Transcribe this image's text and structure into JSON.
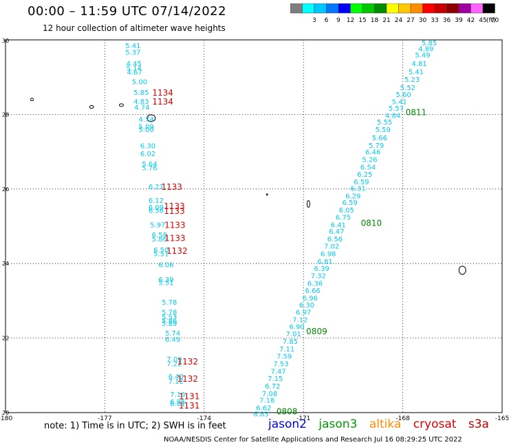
{
  "header": {
    "title": "00:00 – 11:59 UTC 07/14/2022",
    "subtitle": "12 hour collection of altimeter wave heights"
  },
  "legend": {
    "unit": "(ft)",
    "items": [
      {
        "label": "",
        "color": "#7f7f7f"
      },
      {
        "label": "3",
        "color": "#00ffff"
      },
      {
        "label": "6",
        "color": "#00c8ff"
      },
      {
        "label": "9",
        "color": "#0078ff"
      },
      {
        "label": "12",
        "color": "#0000ff"
      },
      {
        "label": "15",
        "color": "#00ff00"
      },
      {
        "label": "18",
        "color": "#00c800"
      },
      {
        "label": "21",
        "color": "#008c00"
      },
      {
        "label": "24",
        "color": "#ffff00"
      },
      {
        "label": "27",
        "color": "#ffc800"
      },
      {
        "label": "30",
        "color": "#ff8c00"
      },
      {
        "label": "33",
        "color": "#ff0000"
      },
      {
        "label": "36",
        "color": "#c80000"
      },
      {
        "label": "39",
        "color": "#8c0000"
      },
      {
        "label": "42",
        "color": "#a000a0"
      },
      {
        "label": "45",
        "color": "#ff64ff"
      },
      {
        "label": "70",
        "color": "#000000"
      }
    ]
  },
  "footer": {
    "note": "note: 1) Time is in UTC; 2) SWH is in feet",
    "missions": [
      {
        "label": "jason2",
        "color": "#0000dd"
      },
      {
        "label": "jason3",
        "color": "#009900"
      },
      {
        "label": "altika",
        "color": "#ff8c00"
      },
      {
        "label": "cryosat",
        "color": "#dd0000"
      },
      {
        "label": "s3a",
        "color": "#bb0000"
      }
    ],
    "credit": "NOAA/NESDIS Center for Satellite Applications and Research    Jul 16 08:29:25 UTC 2022"
  },
  "chart_data": {
    "type": "scatter",
    "xlim": [
      -180,
      -165
    ],
    "ylim": [
      20,
      30
    ],
    "x_ticks": [
      "-180",
      "-177",
      "-174",
      "-171",
      "-168",
      "-165"
    ],
    "y_ticks": [
      "20",
      "22",
      "24",
      "26",
      "28",
      "30"
    ],
    "grid": true,
    "colors": {
      "swh": "#00ccee",
      "jason3": "#008800",
      "cryosat": "#dd0000"
    },
    "series": [
      {
        "name": "jason2",
        "points": [
          {
            "x": -176.15,
            "y": 29.85,
            "v": "5.41"
          },
          {
            "x": -176.15,
            "y": 29.68,
            "v": "5.37"
          },
          {
            "x": -176.12,
            "y": 29.37,
            "v": "4.45"
          },
          {
            "x": -176.12,
            "y": 29.25,
            "v": "5.14"
          },
          {
            "x": -176.1,
            "y": 29.14,
            "v": "4.67"
          },
          {
            "x": -175.95,
            "y": 28.88,
            "v": "5.00"
          },
          {
            "x": -175.9,
            "y": 28.6,
            "v": "5.85"
          },
          {
            "x": -175.9,
            "y": 28.36,
            "v": "4.83"
          },
          {
            "x": -175.88,
            "y": 28.2,
            "v": "4.74"
          },
          {
            "x": -175.75,
            "y": 27.88,
            "v": "4.74"
          },
          {
            "x": -175.75,
            "y": 27.68,
            "v": "5.09"
          },
          {
            "x": -175.75,
            "y": 27.6,
            "v": "5.00"
          },
          {
            "x": -175.7,
            "y": 27.17,
            "v": "6.30"
          },
          {
            "x": -175.7,
            "y": 26.96,
            "v": "6.02"
          },
          {
            "x": -175.65,
            "y": 26.68,
            "v": "5.64"
          },
          {
            "x": -175.65,
            "y": 26.58,
            "v": "5.76"
          },
          {
            "x": -175.45,
            "y": 26.07,
            "v": "6.21"
          },
          {
            "x": -175.45,
            "y": 25.7,
            "v": "6.12"
          },
          {
            "x": -175.45,
            "y": 25.52,
            "v": "6.09"
          },
          {
            "x": -175.45,
            "y": 25.43,
            "v": "6.56"
          },
          {
            "x": -175.4,
            "y": 25.05,
            "v": "5.97"
          },
          {
            "x": -175.35,
            "y": 24.78,
            "v": "6.58"
          },
          {
            "x": -175.35,
            "y": 24.67,
            "v": "5.86"
          },
          {
            "x": -175.3,
            "y": 24.37,
            "v": "6.50"
          },
          {
            "x": -175.3,
            "y": 24.27,
            "v": "5.51"
          },
          {
            "x": -175.15,
            "y": 23.98,
            "v": "6.06"
          },
          {
            "x": -175.15,
            "y": 23.58,
            "v": "6.39"
          },
          {
            "x": -175.15,
            "y": 23.5,
            "v": "5.51"
          },
          {
            "x": -175.05,
            "y": 22.97,
            "v": "5.78"
          },
          {
            "x": -175.05,
            "y": 22.7,
            "v": "5.78"
          },
          {
            "x": -175.05,
            "y": 22.57,
            "v": "5.53"
          },
          {
            "x": -175.05,
            "y": 22.47,
            "v": "5.86"
          },
          {
            "x": -175.05,
            "y": 22.4,
            "v": "5.89"
          },
          {
            "x": -174.95,
            "y": 22.14,
            "v": "5.74"
          },
          {
            "x": -174.95,
            "y": 21.97,
            "v": "6.49"
          },
          {
            "x": -174.9,
            "y": 21.44,
            "v": "7.09"
          },
          {
            "x": -174.9,
            "y": 21.32,
            "v": "7.22"
          },
          {
            "x": -174.85,
            "y": 20.98,
            "v": "6.40"
          },
          {
            "x": -174.85,
            "y": 20.85,
            "v": "7.12"
          },
          {
            "x": -174.8,
            "y": 20.5,
            "v": "7.16"
          },
          {
            "x": -174.8,
            "y": 20.3,
            "v": "6.95"
          },
          {
            "x": -174.8,
            "y": 20.25,
            "v": "6.81"
          },
          {
            "x": -167.2,
            "y": 29.93,
            "v": "5.85"
          },
          {
            "x": -167.3,
            "y": 29.77,
            "v": "4.89"
          },
          {
            "x": -167.4,
            "y": 29.6,
            "v": "5.49"
          },
          {
            "x": -167.5,
            "y": 29.37,
            "v": "4.81"
          },
          {
            "x": -167.6,
            "y": 29.15,
            "v": "5.41"
          },
          {
            "x": -167.72,
            "y": 28.95,
            "v": "5.23"
          },
          {
            "x": -167.85,
            "y": 28.73,
            "v": "5.52"
          },
          {
            "x": -167.98,
            "y": 28.54,
            "v": "5.60"
          },
          {
            "x": -168.1,
            "y": 28.35,
            "v": "5.41"
          },
          {
            "x": -168.2,
            "y": 28.17,
            "v": "5.57"
          },
          {
            "x": -168.3,
            "y": 27.98,
            "v": "4.84"
          },
          {
            "x": -168.55,
            "y": 27.8,
            "v": "5.55"
          },
          {
            "x": -168.6,
            "y": 27.6,
            "v": "5.59"
          },
          {
            "x": -168.7,
            "y": 27.38,
            "v": "5.66"
          },
          {
            "x": -168.8,
            "y": 27.18,
            "v": "5.79"
          },
          {
            "x": -168.9,
            "y": 27.0,
            "v": "6.46"
          },
          {
            "x": -169.0,
            "y": 26.8,
            "v": "5.26"
          },
          {
            "x": -169.05,
            "y": 26.6,
            "v": "6.54"
          },
          {
            "x": -169.15,
            "y": 26.4,
            "v": "6.25"
          },
          {
            "x": -169.25,
            "y": 26.2,
            "v": "6.59"
          },
          {
            "x": -169.35,
            "y": 26.02,
            "v": "6.31"
          },
          {
            "x": -169.5,
            "y": 25.82,
            "v": "6.29"
          },
          {
            "x": -169.6,
            "y": 25.65,
            "v": "6.59"
          },
          {
            "x": -169.7,
            "y": 25.44,
            "v": "6.05"
          },
          {
            "x": -169.8,
            "y": 25.25,
            "v": "6.75"
          },
          {
            "x": -169.95,
            "y": 25.05,
            "v": "6.41"
          },
          {
            "x": -170.0,
            "y": 24.87,
            "v": "6.47"
          },
          {
            "x": -170.05,
            "y": 24.67,
            "v": "6.56"
          },
          {
            "x": -170.15,
            "y": 24.47,
            "v": "7.02"
          },
          {
            "x": -170.25,
            "y": 24.27,
            "v": "6.98"
          },
          {
            "x": -170.35,
            "y": 24.06,
            "v": "6.81"
          },
          {
            "x": -170.45,
            "y": 23.87,
            "v": "6.39"
          },
          {
            "x": -170.55,
            "y": 23.68,
            "v": "7.32"
          },
          {
            "x": -170.65,
            "y": 23.48,
            "v": "6.36"
          },
          {
            "x": -170.72,
            "y": 23.28,
            "v": "6.66"
          },
          {
            "x": -170.8,
            "y": 23.08,
            "v": "6.96"
          },
          {
            "x": -170.9,
            "y": 22.9,
            "v": "6.30"
          },
          {
            "x": -171.0,
            "y": 22.7,
            "v": "6.97"
          },
          {
            "x": -171.1,
            "y": 22.5,
            "v": "7.12"
          },
          {
            "x": -171.2,
            "y": 22.32,
            "v": "6.90"
          },
          {
            "x": -171.3,
            "y": 22.12,
            "v": "7.01"
          },
          {
            "x": -171.4,
            "y": 21.92,
            "v": "7.85"
          },
          {
            "x": -171.5,
            "y": 21.72,
            "v": "7.11"
          },
          {
            "x": -171.58,
            "y": 21.52,
            "v": "7.59"
          },
          {
            "x": -171.68,
            "y": 21.32,
            "v": "7.53"
          },
          {
            "x": -171.76,
            "y": 21.12,
            "v": "7.47"
          },
          {
            "x": -171.85,
            "y": 20.92,
            "v": "7.15"
          },
          {
            "x": -171.93,
            "y": 20.72,
            "v": "6.72"
          },
          {
            "x": -172.02,
            "y": 20.52,
            "v": "7.08"
          },
          {
            "x": -172.1,
            "y": 20.34,
            "v": "7.18"
          },
          {
            "x": -172.2,
            "y": 20.14,
            "v": "6.62"
          },
          {
            "x": -172.28,
            "y": 19.97,
            "v": "6.83"
          }
        ]
      },
      {
        "name": "jason3",
        "labels": [
          {
            "x": -167.6,
            "y": 28.07,
            "v": "0811"
          },
          {
            "x": -168.95,
            "y": 25.1,
            "v": "0810"
          },
          {
            "x": -170.6,
            "y": 22.2,
            "v": "0809"
          },
          {
            "x": -171.5,
            "y": 20.05,
            "v": "0808"
          }
        ]
      },
      {
        "name": "cryosat",
        "labels": [
          {
            "x": -175.25,
            "y": 28.6,
            "v": "1134"
          },
          {
            "x": -175.25,
            "y": 28.36,
            "v": "1134"
          },
          {
            "x": -174.98,
            "y": 26.07,
            "v": "1133"
          },
          {
            "x": -174.9,
            "y": 25.55,
            "v": "1133"
          },
          {
            "x": -174.9,
            "y": 25.42,
            "v": "1133"
          },
          {
            "x": -174.88,
            "y": 25.05,
            "v": "1133"
          },
          {
            "x": -174.88,
            "y": 24.7,
            "v": "1133"
          },
          {
            "x": -174.82,
            "y": 24.35,
            "v": "1132"
          },
          {
            "x": -174.5,
            "y": 21.38,
            "v": "1132"
          },
          {
            "x": -174.5,
            "y": 20.92,
            "v": "1132"
          },
          {
            "x": -174.45,
            "y": 20.45,
            "v": "1131"
          },
          {
            "x": -174.45,
            "y": 20.2,
            "v": "1131"
          }
        ]
      }
    ]
  }
}
